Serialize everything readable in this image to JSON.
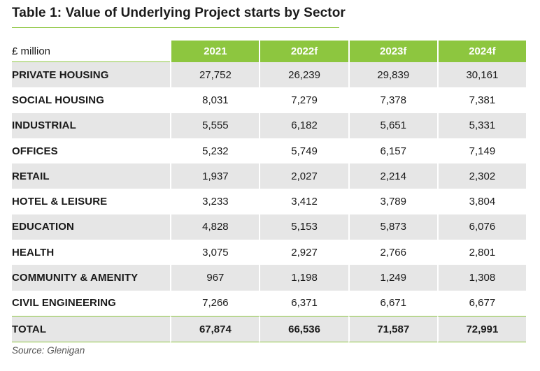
{
  "title": "Table 1: Value of Underlying Project starts by Sector",
  "colors": {
    "accent": "#8dc63f",
    "row_shade": "#e6e6e6"
  },
  "table": {
    "unit_label": "£ million",
    "columns": [
      "2021",
      "2022f",
      "2023f",
      "2024f"
    ],
    "rows": [
      {
        "sector": "PRIVATE HOUSING",
        "values": [
          "27,752",
          "26,239",
          "29,839",
          "30,161"
        ]
      },
      {
        "sector": "SOCIAL HOUSING",
        "values": [
          "8,031",
          "7,279",
          "7,378",
          "7,381"
        ]
      },
      {
        "sector": "INDUSTRIAL",
        "values": [
          "5,555",
          "6,182",
          "5,651",
          "5,331"
        ]
      },
      {
        "sector": "OFFICES",
        "values": [
          "5,232",
          "5,749",
          "6,157",
          "7,149"
        ]
      },
      {
        "sector": "RETAIL",
        "values": [
          "1,937",
          "2,027",
          "2,214",
          "2,302"
        ]
      },
      {
        "sector": "HOTEL & LEISURE",
        "values": [
          "3,233",
          "3,412",
          "3,789",
          "3,804"
        ]
      },
      {
        "sector": "EDUCATION",
        "values": [
          "4,828",
          "5,153",
          "5,873",
          "6,076"
        ]
      },
      {
        "sector": "HEALTH",
        "values": [
          "3,075",
          "2,927",
          "2,766",
          "2,801"
        ]
      },
      {
        "sector": "COMMUNITY & AMENITY",
        "values": [
          "967",
          "1,198",
          "1,249",
          "1,308"
        ]
      },
      {
        "sector": "CIVIL ENGINEERING",
        "values": [
          "7,266",
          "6,371",
          "6,671",
          "6,677"
        ]
      }
    ],
    "total": {
      "label": "TOTAL",
      "values": [
        "67,874",
        "66,536",
        "71,587",
        "72,991"
      ]
    }
  },
  "source": "Source: Glenigan"
}
